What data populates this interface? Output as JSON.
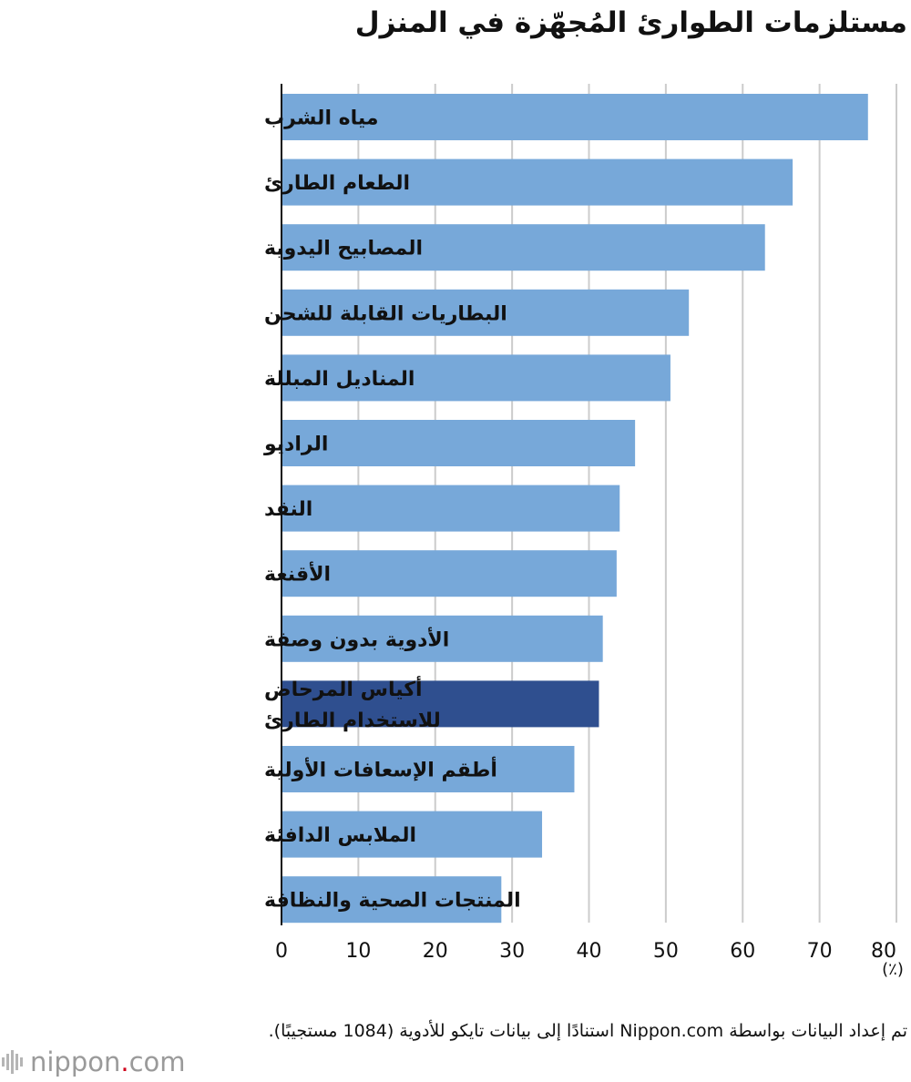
{
  "title": "مستلزمات الطوارئ المُجهّزة في المنزل",
  "unit_label": "(٪)",
  "source_note": "تم إعداد البيانات بواسطة Nippon.com استنادًا إلى بيانات تايكو للأدوية (1084 مستجيبًا).",
  "logo": {
    "name": "nippon",
    "dot": ".",
    "suffix": "com"
  },
  "colors": {
    "bar": "#77a8d9",
    "highlight": "#2f4f8f",
    "grid": "#cccccc",
    "axis": "#111111"
  },
  "chart_data": {
    "type": "bar",
    "orientation": "horizontal",
    "categories": [
      [
        "مياه الشرب"
      ],
      [
        "الطعام الطارئ"
      ],
      [
        "المصابيح اليدوية"
      ],
      [
        "البطاريات القابلة للشحن"
      ],
      [
        "المناديل المبللة"
      ],
      [
        "الراديو"
      ],
      [
        "النقد"
      ],
      [
        "الأقنعة"
      ],
      [
        "الأدوية بدون وصفة"
      ],
      [
        "أكياس المرحاض",
        "للاستخدام الطارئ"
      ],
      [
        "أطقم الإسعافات الأولية"
      ],
      [
        "الملابس الدافئة"
      ],
      [
        "المنتجات الصحية والنظافة"
      ]
    ],
    "values": [
      76.3,
      66.5,
      62.9,
      53.0,
      50.6,
      46.0,
      44.0,
      43.6,
      41.8,
      41.3,
      38.1,
      33.9,
      28.6
    ],
    "highlight_index": 9,
    "xlim": [
      0,
      80
    ],
    "xticks": [
      0,
      10,
      20,
      30,
      40,
      50,
      60,
      70,
      80
    ],
    "grid": true
  }
}
